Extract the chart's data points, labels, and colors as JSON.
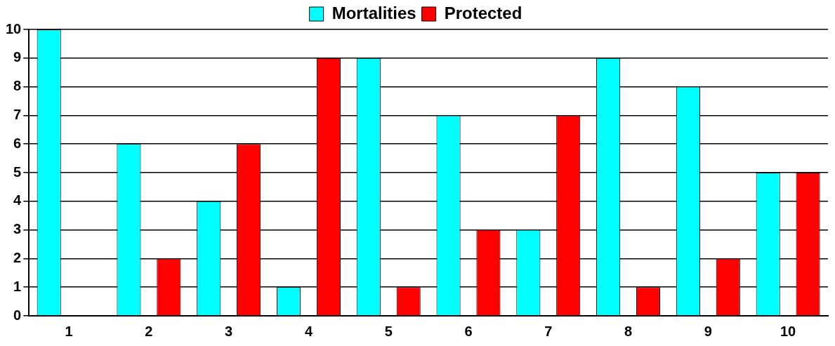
{
  "chart_data": {
    "type": "bar",
    "categories": [
      "1",
      "2",
      "3",
      "4",
      "5",
      "6",
      "7",
      "8",
      "9",
      "10"
    ],
    "series": [
      {
        "name": "Mortalities",
        "color": "#00ffff",
        "values": [
          10,
          6,
          4,
          1,
          9,
          7,
          3,
          9,
          8,
          5
        ]
      },
      {
        "name": "Protected",
        "color": "#ff0000",
        "values": [
          0,
          2,
          6,
          9,
          1,
          3,
          7,
          1,
          2,
          5
        ]
      }
    ],
    "ylim": [
      0,
      10
    ],
    "yticks": [
      0,
      1,
      2,
      3,
      4,
      5,
      6,
      7,
      8,
      9,
      10
    ],
    "grid": "y",
    "legend": "top"
  }
}
